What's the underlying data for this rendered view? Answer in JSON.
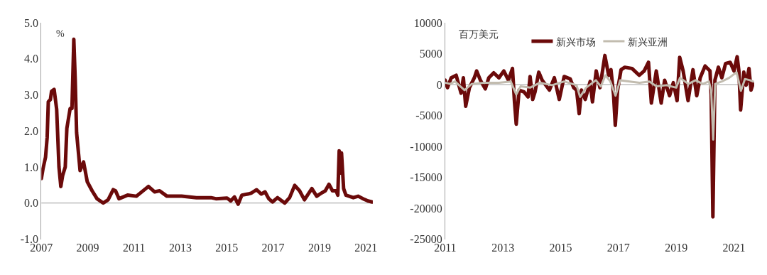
{
  "chart_data": [
    {
      "type": "line",
      "ylabel": "%",
      "xlim": [
        2007,
        2021.3
      ],
      "xticks": [
        2007,
        2009,
        2011,
        2013,
        2015,
        2017,
        2019,
        2021
      ],
      "ylim": [
        -1,
        5
      ],
      "yticks": [
        {
          "value": -1,
          "label": "-1.0"
        },
        {
          "value": 0,
          "label": "0.0"
        },
        {
          "value": 1,
          "label": "1.0"
        },
        {
          "value": 2,
          "label": "2.0"
        },
        {
          "value": 3,
          "label": "3.0"
        },
        {
          "value": 4,
          "label": "4.0"
        },
        {
          "value": 5,
          "label": "5.0"
        }
      ],
      "grid": false,
      "legend": false,
      "ref_lines": [
        {
          "axis": "y",
          "value": 0,
          "color": "#a0a0a0"
        }
      ],
      "series": [
        {
          "color": "#6b0a0a",
          "x": [
            2007.0,
            2007.07,
            2007.18,
            2007.25,
            2007.3,
            2007.39,
            2007.44,
            2007.55,
            2007.66,
            2007.76,
            2007.84,
            2007.92,
            2008.03,
            2008.1,
            2008.24,
            2008.32,
            2008.4,
            2008.46,
            2008.52,
            2008.61,
            2008.67,
            2008.82,
            2008.98,
            2009.19,
            2009.4,
            2009.67,
            2009.88,
            2010.1,
            2010.2,
            2010.35,
            2010.72,
            2011.1,
            2011.62,
            2011.89,
            2012.1,
            2012.42,
            2013.05,
            2013.69,
            2014.32,
            2014.53,
            2015.01,
            2015.17,
            2015.33,
            2015.49,
            2015.65,
            2015.91,
            2016.07,
            2016.28,
            2016.49,
            2016.65,
            2016.81,
            2016.97,
            2017.19,
            2017.5,
            2017.71,
            2017.93,
            2018.14,
            2018.35,
            2018.67,
            2018.88,
            2019.09,
            2019.25,
            2019.41,
            2019.56,
            2019.72,
            2019.79,
            2019.85,
            2019.89,
            2019.95,
            2020.04,
            2020.14,
            2020.46,
            2020.67,
            2020.88,
            2021.09,
            2021.27
          ],
          "values": [
            0.68,
            0.95,
            1.27,
            1.82,
            2.81,
            2.87,
            3.1,
            3.15,
            2.6,
            1.0,
            0.46,
            0.77,
            1.0,
            2.07,
            2.62,
            2.62,
            4.54,
            3.43,
            1.95,
            1.33,
            0.9,
            1.14,
            0.59,
            0.34,
            0.12,
            0.0,
            0.09,
            0.37,
            0.34,
            0.12,
            0.22,
            0.19,
            0.46,
            0.31,
            0.34,
            0.19,
            0.19,
            0.15,
            0.15,
            0.12,
            0.14,
            0.06,
            0.17,
            -0.03,
            0.22,
            0.25,
            0.28,
            0.37,
            0.25,
            0.31,
            0.12,
            0.03,
            0.15,
            0.0,
            0.15,
            0.49,
            0.34,
            0.09,
            0.4,
            0.19,
            0.28,
            0.34,
            0.52,
            0.34,
            0.34,
            0.22,
            1.45,
            0.83,
            1.39,
            0.4,
            0.22,
            0.15,
            0.19,
            0.12,
            0.06,
            0.03
          ]
        }
      ]
    },
    {
      "type": "line",
      "ylabel": "百万美元",
      "xlim": [
        2011,
        2021.7
      ],
      "xticks": [
        2011,
        2013,
        2015,
        2017,
        2019,
        2021
      ],
      "ylim": [
        -25000,
        10000
      ],
      "yticks": [
        -25000,
        -20000,
        -15000,
        -10000,
        -5000,
        0,
        5000,
        10000
      ],
      "grid": false,
      "legend": "top",
      "ref_lines": [
        {
          "axis": "y",
          "value": 0,
          "color": "#a0a0a0"
        }
      ],
      "series": [
        {
          "name": "新兴市场",
          "color": "#6b0a0a",
          "x": [
            2011.0,
            2011.08,
            2011.21,
            2011.38,
            2011.55,
            2011.63,
            2011.71,
            2011.84,
            2012.01,
            2012.09,
            2012.22,
            2012.39,
            2012.51,
            2012.68,
            2012.86,
            2013.03,
            2013.19,
            2013.33,
            2013.4,
            2013.46,
            2013.56,
            2013.73,
            2013.87,
            2013.94,
            2014.03,
            2014.11,
            2014.24,
            2014.36,
            2014.61,
            2014.78,
            2014.95,
            2015.12,
            2015.33,
            2015.45,
            2015.55,
            2015.64,
            2015.72,
            2015.85,
            2016.02,
            2016.1,
            2016.23,
            2016.36,
            2016.53,
            2016.66,
            2016.74,
            2016.83,
            2016.89,
            2016.97,
            2017.09,
            2017.22,
            2017.47,
            2017.72,
            2017.89,
            2018.04,
            2018.14,
            2018.31,
            2018.48,
            2018.6,
            2018.77,
            2018.9,
            2019.03,
            2019.12,
            2019.24,
            2019.41,
            2019.58,
            2019.71,
            2019.83,
            2020.0,
            2020.17,
            2020.21,
            2020.27,
            2020.34,
            2020.46,
            2020.58,
            2020.71,
            2020.87,
            2021.0,
            2021.11,
            2021.17,
            2021.23,
            2021.34,
            2021.42,
            2021.52,
            2021.59,
            2021.66
          ],
          "values": [
            700,
            -500,
            1100,
            1500,
            -1400,
            1100,
            -3500,
            -500,
            1100,
            2200,
            700,
            -700,
            1100,
            1900,
            1100,
            2200,
            700,
            2600,
            -2800,
            -6400,
            -900,
            -1200,
            -2000,
            1300,
            -2400,
            -1200,
            2000,
            700,
            -900,
            1100,
            -2400,
            1300,
            900,
            -500,
            -900,
            -4700,
            -900,
            -2400,
            500,
            -2800,
            2200,
            -500,
            4700,
            1500,
            2400,
            -1600,
            -6600,
            -900,
            2400,
            2800,
            2600,
            1500,
            2200,
            3600,
            -3000,
            2200,
            -3000,
            700,
            -1800,
            300,
            -2600,
            4400,
            2200,
            -2600,
            2400,
            -1800,
            1100,
            3000,
            2200,
            -1600,
            -21400,
            700,
            2800,
            1100,
            3400,
            3600,
            2200,
            4500,
            2200,
            -4100,
            2000,
            -100,
            2600,
            -900,
            100
          ]
        },
        {
          "name": "新兴亚洲",
          "color": "#c2bcaf",
          "x": [
            2011.0,
            2011.17,
            2011.34,
            2011.67,
            2011.92,
            2012.34,
            2012.86,
            2013.27,
            2013.46,
            2013.61,
            2013.94,
            2014.28,
            2014.7,
            2015.12,
            2015.55,
            2015.67,
            2015.88,
            2016.22,
            2016.39,
            2016.55,
            2016.72,
            2016.9,
            2017.06,
            2017.39,
            2017.73,
            2018.07,
            2018.32,
            2018.66,
            2019.0,
            2019.13,
            2019.42,
            2019.67,
            2019.92,
            2020.13,
            2020.21,
            2020.28,
            2020.35,
            2020.58,
            2020.84,
            2021.09,
            2021.24,
            2021.38,
            2021.55,
            2021.66
          ],
          "values": [
            300,
            100,
            500,
            -900,
            100,
            300,
            300,
            500,
            -1600,
            -300,
            -500,
            300,
            -100,
            500,
            -100,
            -2000,
            -500,
            700,
            -300,
            1500,
            500,
            -1800,
            700,
            500,
            300,
            500,
            -300,
            -100,
            -500,
            1100,
            100,
            700,
            100,
            500,
            -900,
            -8900,
            100,
            500,
            1100,
            2000,
            -1000,
            900,
            700,
            500
          ]
        }
      ]
    }
  ]
}
